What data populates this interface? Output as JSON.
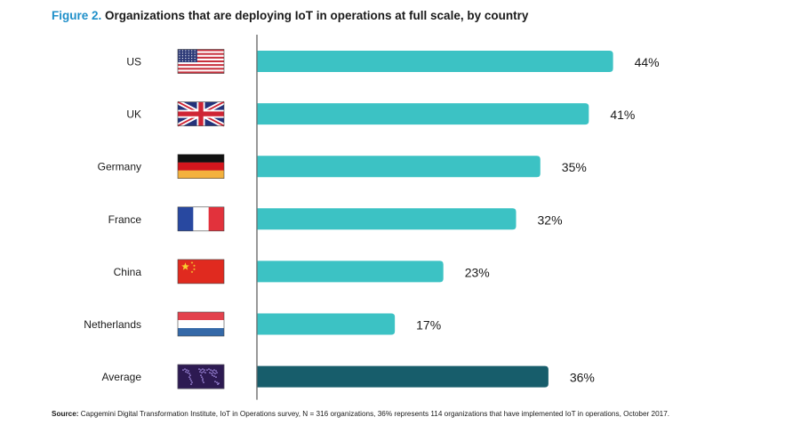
{
  "title": {
    "figure_label": "Figure 2.",
    "text": " Organizations that are deploying IoT in operations at full scale, by country"
  },
  "source": {
    "label": "Source:",
    "text": " Capgemini Digital Transformation Institute, IoT in Operations survey, N = 316 organizations, 36% represents 114 organizations that have implemented IoT in operations, October 2017."
  },
  "colors": {
    "bar": "#3cc2c4",
    "average_bar": "#175d6b",
    "axis": "#555555",
    "title_accent": "#1e8fc9"
  },
  "chart_data": {
    "type": "bar",
    "orientation": "horizontal",
    "categories": [
      "US",
      "UK",
      "Germany",
      "France",
      "China",
      "Netherlands",
      "Average"
    ],
    "values": [
      44,
      41,
      35,
      32,
      23,
      17,
      36
    ],
    "data_labels": [
      "44%",
      "41%",
      "35%",
      "32%",
      "23%",
      "17%",
      "36%"
    ],
    "flags": [
      "us-flag",
      "uk-flag",
      "germany-flag",
      "france-flag",
      "china-flag",
      "netherlands-flag",
      "world-map-icon"
    ],
    "xlim": [
      0,
      44
    ],
    "grid": false,
    "legend": "none"
  }
}
